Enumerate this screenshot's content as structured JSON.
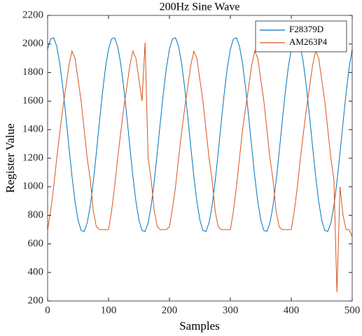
{
  "chart_data": {
    "type": "line",
    "title": "200Hz Sine Wave",
    "x_label": "Samples",
    "y_label": "Register Value",
    "x": [
      0,
      5,
      10,
      15,
      20,
      25,
      30,
      35,
      40,
      45,
      50,
      55,
      60,
      65,
      70,
      75,
      80,
      85,
      90,
      95,
      100,
      105,
      110,
      115,
      120,
      125,
      130,
      135,
      140,
      145,
      150,
      155,
      160,
      165,
      170,
      175,
      180,
      185,
      190,
      195,
      200,
      205,
      210,
      215,
      220,
      225,
      230,
      235,
      240,
      245,
      250,
      255,
      260,
      265,
      270,
      275,
      280,
      285,
      290,
      295,
      300,
      305,
      310,
      315,
      320,
      325,
      330,
      335,
      340,
      345,
      350,
      355,
      360,
      365,
      370,
      375,
      380,
      385,
      390,
      395,
      400,
      405,
      410,
      415,
      420,
      425,
      430,
      435,
      440,
      445,
      450,
      455,
      460,
      465,
      470,
      475,
      480,
      485,
      490,
      495,
      500
    ],
    "series": [
      {
        "name": "F28379D",
        "color": "#0072BD",
        "values": [
          1963,
          2036,
          2043,
          1983,
          1863,
          1694,
          1493,
          1280,
          1074,
          897,
          767,
          694,
          687,
          747,
          867,
          1036,
          1237,
          1450,
          1656,
          1833,
          1963,
          2036,
          2043,
          1983,
          1863,
          1694,
          1493,
          1280,
          1074,
          897,
          767,
          694,
          687,
          747,
          867,
          1036,
          1237,
          1450,
          1656,
          1833,
          1963,
          2036,
          2043,
          1983,
          1863,
          1694,
          1493,
          1280,
          1074,
          897,
          767,
          694,
          687,
          747,
          867,
          1036,
          1237,
          1450,
          1656,
          1833,
          1963,
          2036,
          2043,
          1983,
          1863,
          1694,
          1493,
          1280,
          1074,
          897,
          767,
          694,
          687,
          747,
          867,
          1036,
          1237,
          1450,
          1656,
          1833,
          1963,
          2036,
          2043,
          1983,
          1863,
          1694,
          1493,
          1280,
          1074,
          897,
          767,
          694,
          687,
          747,
          867,
          1036,
          1237,
          1450,
          1656,
          1833,
          1963
        ]
      },
      {
        "name": "AM263P4",
        "color": "#D95319",
        "values": [
          700,
          830,
          1000,
          1200,
          1380,
          1550,
          1700,
          1850,
          1950,
          1900,
          1750,
          1600,
          1400,
          1200,
          1050,
          830,
          720,
          700,
          700,
          700,
          700,
          830,
          1000,
          1200,
          1380,
          1550,
          1700,
          1850,
          1950,
          1900,
          1750,
          1600,
          2010,
          1200,
          1050,
          830,
          720,
          700,
          700,
          700,
          720,
          850,
          1000,
          1200,
          1380,
          1550,
          1700,
          1850,
          1950,
          1900,
          1750,
          1600,
          1400,
          1200,
          1050,
          830,
          720,
          700,
          700,
          700,
          700,
          830,
          1000,
          1200,
          1400,
          1550,
          1700,
          1850,
          1950,
          1900,
          1750,
          1600,
          1400,
          1200,
          1050,
          830,
          720,
          700,
          700,
          700,
          700,
          830,
          1000,
          1200,
          1380,
          1550,
          1700,
          1850,
          1950,
          1900,
          1750,
          1600,
          1400,
          1200,
          1050,
          260,
          1000,
          800,
          700,
          700,
          650
        ]
      }
    ],
    "xlim": [
      0,
      500
    ],
    "xticks": [
      0,
      100,
      200,
      300,
      400,
      500
    ],
    "ylim": [
      200,
      2200
    ],
    "yticks": [
      200,
      400,
      600,
      800,
      1000,
      1200,
      1400,
      1600,
      1800,
      2000,
      2200
    ],
    "legend": "top-right"
  }
}
